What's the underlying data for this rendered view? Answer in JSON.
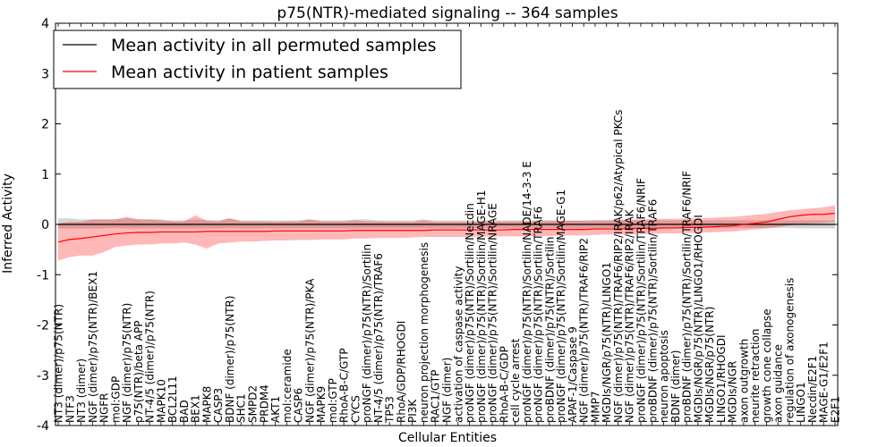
{
  "chart_data": {
    "type": "line",
    "title": "p75(NTR)-mediated signaling -- 364 samples",
    "xlabel": "Cellular Entities",
    "ylabel": "Inferred Activity",
    "ylim": [
      -4,
      4
    ],
    "yticks": [
      -4,
      -3,
      -2,
      -1,
      0,
      1,
      2,
      3,
      4
    ],
    "grid": false,
    "legend_position": "top-left",
    "categories": [
      "NT3 (dimer)/p75(NTR)",
      "NTF3",
      "NT3 (dimer)",
      "NGF (dimer)/p75(NTR)/BEX1",
      "NGFR",
      "mol:GDP",
      "NGF (dimer)/p75(NTR)",
      "p75(NTR)/beta APP",
      "NT-4/5 (dimer)/p75(NTR)",
      "MAPK10",
      "BCL2L11",
      "BAD",
      "BEX1",
      "MAPK8",
      "CASP3",
      "BDNF (dimer)/p75(NTR)",
      "SHC1",
      "SMPD2",
      "PRDM4",
      "AKT1",
      "mol:ceramide",
      "CASP6",
      "NGF (dimer)/p75(NTR)/PKA",
      "MAPK9",
      "mol:GTP",
      "RhoA-B-C/GTP",
      "CYCS",
      "proNGF (dimer)/p75(NTR)/Sortilin",
      "NT-4/5 (dimer)/p75(NTR)/TRAF6",
      "TP53",
      "RhoA/GDP/RHOGDI",
      "PI3K",
      "neuron projection morphogenesis",
      "RAC1/GTP",
      "NGF (dimer)",
      "activation of caspase activity",
      "proNGF (dimer)/p75(NTR)/Sortilin/Necdin",
      "proNGF (dimer)/p75(NTR)/Sortilin/MAGE-H1",
      "proNGF (dimer)/p75(NTR)/Sortilin/NRAGE",
      "RhoA-B-C/GDP",
      "cell cycle arrest",
      "proNGF (dimer)/p75(NTR)/Sortilin/NADE/14-3-3 E",
      "proNGF (dimer)/p75(NTR)/Sortilin/TRAF6",
      "proBDNF (dimer)/p75(NTR)/Sortilin",
      "proNGF (dimer)/p75(NTR)/Sortilin/MAGE-G1",
      "APAF-1/Caspase 9",
      "NGF (dimer)/p75(NTR)/TRAF6/RIP2",
      "MMP7",
      "MGDIs/NGR/p75(NTR)/LINGO1",
      "NGF (dimer)/p75(NTR)/TRAF6/RIP2/IRAK/p62/Atypical PKCs",
      "NGF (dimer)/p75(NTR)/TRAF6/RIP2/IRAK",
      "proNGF (dimer)/p75(NTR)/Sortilin/TRAF6/NRIF",
      "proBDNF (dimer)/p75(NTR)/Sortilin/TRAF6",
      "neuron apoptosis",
      "BDNF (dimer)",
      "proBDNF (dimer)/p75(NTR)/Sortilin/TRAF6/NRIF",
      "MGDIs/NGR/p75(NTR)/LINGO1/RHOGDI",
      "MGDIs/NGR/p75(NTR)",
      "LINGO1/RHOGDI",
      "MGDIs/NGR",
      "axon outgrowth",
      "neurite retraction",
      "growth cone collapse",
      "axon guidance",
      "regulation of axonogenesis",
      "LINGO1",
      "Necdin/E2F1",
      "MAGE-G1/E2F1",
      "E2F1"
    ],
    "series": [
      {
        "name": "Mean activity in all permuted samples",
        "color": "#000000",
        "values": [
          0,
          0,
          0,
          0,
          0,
          0,
          0,
          0,
          0,
          0,
          0,
          0,
          0,
          0,
          0,
          0,
          0,
          0,
          0,
          0,
          0,
          0,
          0,
          0,
          0,
          0,
          0,
          0,
          0,
          0,
          0,
          0,
          0,
          0,
          0,
          0,
          0,
          0,
          0,
          0,
          0,
          0,
          0,
          0,
          0,
          0,
          0,
          0,
          0,
          0,
          0,
          0,
          0,
          0,
          0,
          0,
          0,
          0,
          0,
          0,
          0,
          0,
          0,
          0,
          0,
          0,
          0,
          0,
          0
        ],
        "band_lower": [
          -0.08,
          -0.08,
          -0.08,
          -0.08,
          -0.08,
          -0.07,
          -0.08,
          -0.08,
          -0.08,
          -0.08,
          -0.08,
          -0.08,
          -0.08,
          -0.08,
          -0.08,
          -0.07,
          -0.08,
          -0.08,
          -0.08,
          -0.08,
          -0.08,
          -0.08,
          -0.08,
          -0.08,
          -0.08,
          -0.08,
          -0.08,
          -0.08,
          -0.08,
          -0.08,
          -0.08,
          -0.08,
          -0.08,
          -0.08,
          -0.08,
          -0.08,
          -0.07,
          -0.07,
          -0.07,
          -0.08,
          -0.08,
          -0.07,
          -0.07,
          -0.07,
          -0.07,
          -0.08,
          -0.07,
          -0.08,
          -0.07,
          -0.07,
          -0.07,
          -0.07,
          -0.07,
          -0.08,
          -0.08,
          -0.07,
          -0.07,
          -0.07,
          -0.07,
          -0.07,
          -0.07,
          -0.07,
          -0.07,
          -0.07,
          -0.07,
          -0.08,
          -0.08,
          -0.08,
          -0.08
        ],
        "band_upper": [
          0.12,
          0.12,
          0.1,
          0.1,
          0.1,
          0.1,
          0.12,
          0.1,
          0.1,
          0.1,
          0.08,
          0.08,
          0.1,
          0.08,
          0.08,
          0.12,
          0.08,
          0.08,
          0.08,
          0.08,
          0.08,
          0.08,
          0.1,
          0.08,
          0.08,
          0.08,
          0.1,
          0.1,
          0.08,
          0.08,
          0.08,
          0.08,
          0.1,
          0.08,
          0.08,
          0.08,
          0.08,
          0.08,
          0.08,
          0.08,
          0.08,
          0.08,
          0.08,
          0.08,
          0.08,
          0.08,
          0.08,
          0.08,
          0.08,
          0.08,
          0.08,
          0.08,
          0.08,
          0.08,
          0.08,
          0.08,
          0.08,
          0.08,
          0.08,
          0.08,
          0.08,
          0.08,
          0.08,
          0.08,
          0.08,
          0.08,
          0.08,
          0.08,
          0.08
        ]
      },
      {
        "name": "Mean activity in patient samples",
        "color": "#ff0000",
        "values": [
          -0.35,
          -0.3,
          -0.28,
          -0.25,
          -0.22,
          -0.19,
          -0.17,
          -0.16,
          -0.16,
          -0.15,
          -0.15,
          -0.15,
          -0.15,
          -0.14,
          -0.14,
          -0.14,
          -0.14,
          -0.14,
          -0.14,
          -0.13,
          -0.13,
          -0.13,
          -0.13,
          -0.13,
          -0.13,
          -0.13,
          -0.12,
          -0.12,
          -0.12,
          -0.12,
          -0.12,
          -0.12,
          -0.12,
          -0.11,
          -0.11,
          -0.11,
          -0.11,
          -0.11,
          -0.11,
          -0.11,
          -0.1,
          -0.1,
          -0.1,
          -0.1,
          -0.1,
          -0.1,
          -0.1,
          -0.09,
          -0.09,
          -0.09,
          -0.08,
          -0.08,
          -0.08,
          -0.07,
          -0.07,
          -0.06,
          -0.06,
          -0.05,
          -0.04,
          -0.03,
          0.0,
          0.02,
          0.05,
          0.1,
          0.15,
          0.18,
          0.2,
          0.2,
          0.22
        ],
        "band_lower": [
          -0.72,
          -0.65,
          -0.62,
          -0.62,
          -0.55,
          -0.45,
          -0.42,
          -0.4,
          -0.4,
          -0.38,
          -0.38,
          -0.36,
          -0.4,
          -0.48,
          -0.38,
          -0.36,
          -0.34,
          -0.34,
          -0.33,
          -0.32,
          -0.32,
          -0.31,
          -0.31,
          -0.3,
          -0.3,
          -0.3,
          -0.28,
          -0.28,
          -0.27,
          -0.27,
          -0.27,
          -0.26,
          -0.25,
          -0.25,
          -0.25,
          -0.25,
          -0.25,
          -0.24,
          -0.24,
          -0.24,
          -0.24,
          -0.23,
          -0.23,
          -0.23,
          -0.22,
          -0.22,
          -0.22,
          -0.21,
          -0.2,
          -0.2,
          -0.2,
          -0.19,
          -0.19,
          -0.18,
          -0.18,
          -0.17,
          -0.17,
          -0.16,
          -0.15,
          -0.14,
          -0.12,
          -0.1,
          -0.08,
          -0.05,
          -0.02,
          0.0,
          0.02,
          0.03,
          0.05
        ],
        "band_upper": [
          0.02,
          0.05,
          0.05,
          0.1,
          0.1,
          0.1,
          0.15,
          0.1,
          0.1,
          0.08,
          0.06,
          0.06,
          0.18,
          0.08,
          0.06,
          0.12,
          0.06,
          0.06,
          0.06,
          0.05,
          0.06,
          0.06,
          0.1,
          0.06,
          0.06,
          0.06,
          0.08,
          0.06,
          0.06,
          0.05,
          0.05,
          0.05,
          0.08,
          0.05,
          0.05,
          0.05,
          0.05,
          0.06,
          0.06,
          0.06,
          0.06,
          0.06,
          0.06,
          0.07,
          0.07,
          0.07,
          0.07,
          0.08,
          0.08,
          0.09,
          0.1,
          0.1,
          0.1,
          0.11,
          0.11,
          0.12,
          0.12,
          0.13,
          0.14,
          0.15,
          0.17,
          0.19,
          0.21,
          0.25,
          0.28,
          0.3,
          0.32,
          0.34,
          0.38
        ]
      }
    ]
  }
}
